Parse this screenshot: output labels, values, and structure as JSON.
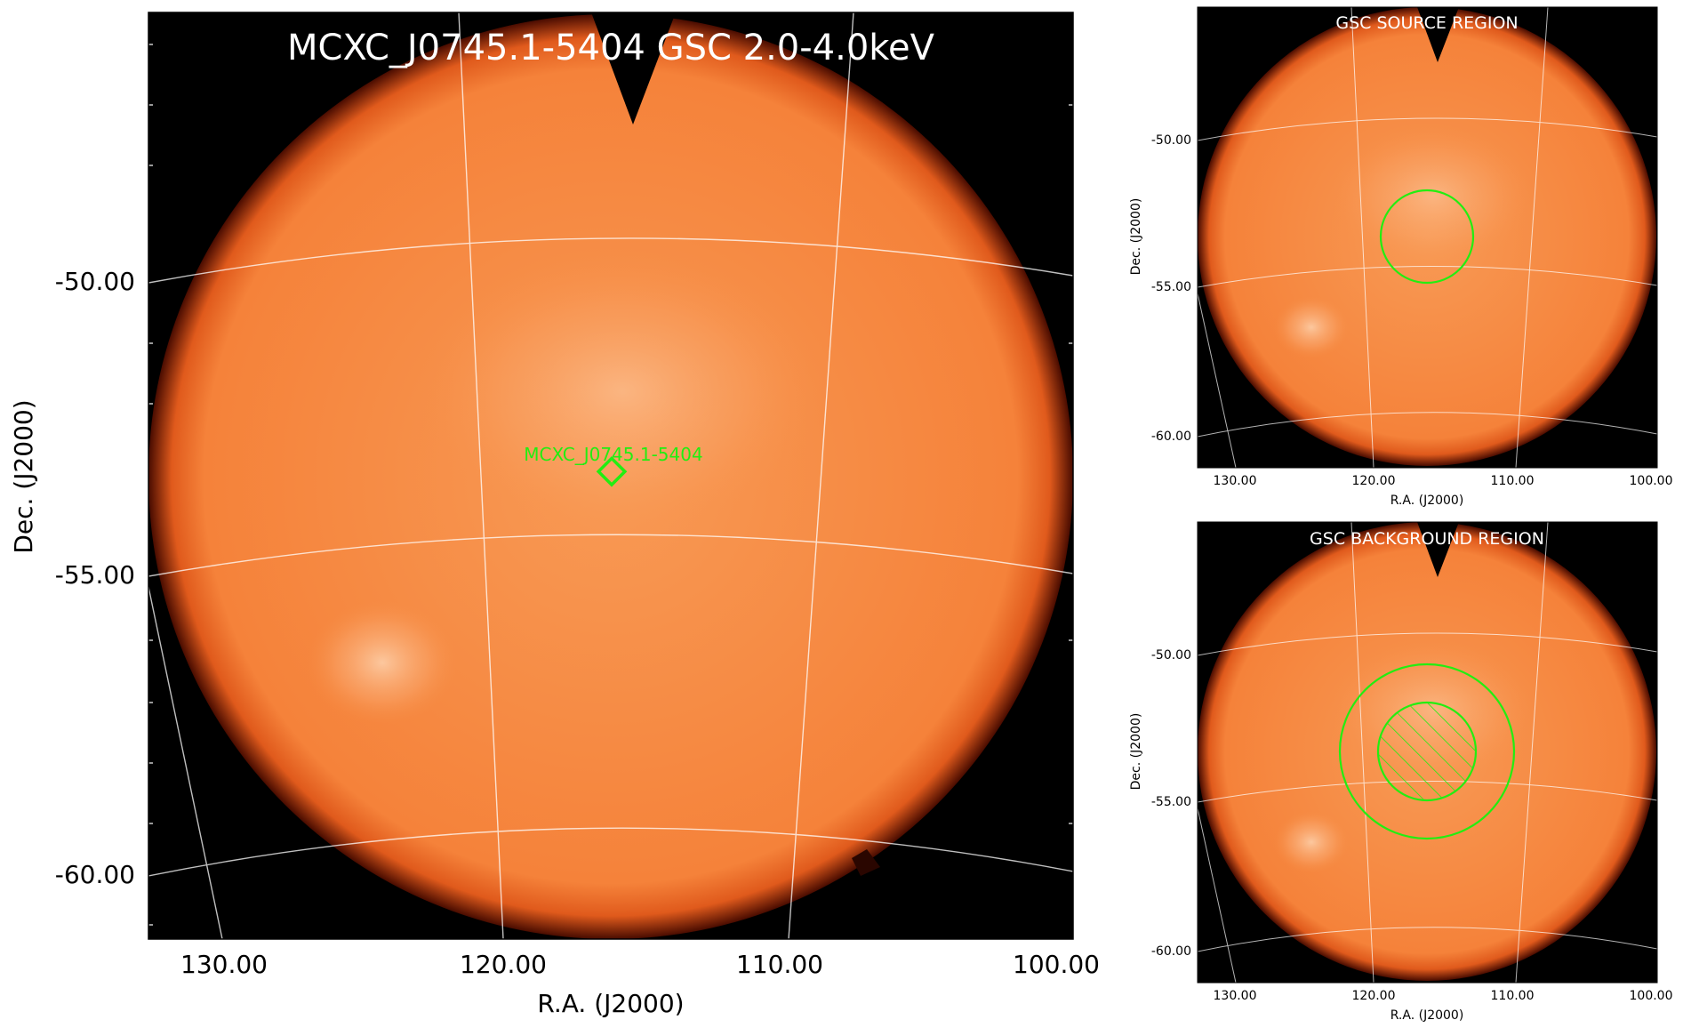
{
  "main_panel": {
    "title": "MCXC_J0745.1-5404 GSC 2.0-4.0keV",
    "source_label": "MCXC_J0745.1-5404",
    "xlabel": "R.A. (J2000)",
    "ylabel": "Dec. (J2000)",
    "x_ticks": [
      "130.00",
      "120.00",
      "110.00",
      "100.00"
    ],
    "y_ticks": [
      "-50.00",
      "-55.00",
      "-60.00"
    ]
  },
  "source_panel": {
    "title": "GSC SOURCE REGION",
    "xlabel": "R.A. (J2000)",
    "ylabel": "Dec. (J2000)",
    "x_ticks": [
      "130.00",
      "120.00",
      "110.00",
      "100.00"
    ],
    "y_ticks": [
      "-50.00",
      "-55.00",
      "-60.00"
    ]
  },
  "background_panel": {
    "title": "GSC BACKGROUND REGION",
    "xlabel": "R.A. (J2000)",
    "ylabel": "Dec. (J2000)",
    "x_ticks": [
      "130.00",
      "120.00",
      "110.00",
      "100.00"
    ],
    "y_ticks": [
      "-50.00",
      "-55.00",
      "-60.00"
    ]
  },
  "colors": {
    "disk": "#f58436",
    "disk_bright": "#fbc394",
    "frame_background": "#000000",
    "region": "#22ee11",
    "grid": "#ffffff"
  }
}
